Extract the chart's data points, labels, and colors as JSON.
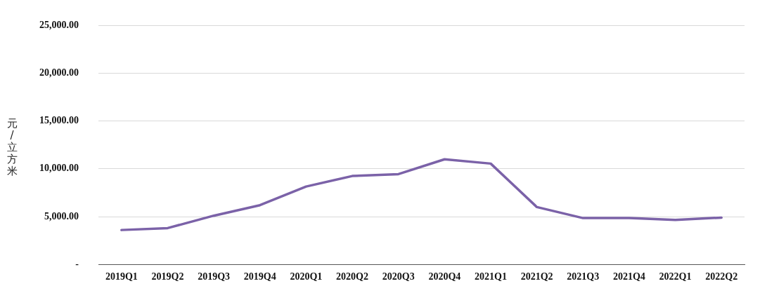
{
  "chart_data": {
    "type": "line",
    "ylabel": "元/立方米",
    "categories": [
      "2019Q1",
      "2019Q2",
      "2019Q3",
      "2019Q4",
      "2020Q1",
      "2020Q2",
      "2020Q3",
      "2020Q4",
      "2021Q1",
      "2021Q2",
      "2021Q3",
      "2021Q4",
      "2022Q1",
      "2022Q2"
    ],
    "series": [
      {
        "color": "#7b62a8",
        "values": [
          3600,
          3800,
          5100,
          6200,
          8150,
          9250,
          9450,
          11000,
          10550,
          6000,
          4850,
          4850,
          4650,
          4900
        ]
      }
    ],
    "ylim": [
      0,
      25000
    ],
    "yticks": [
      {
        "value": 0,
        "label": "-"
      },
      {
        "value": 5000,
        "label": "5,000.00"
      },
      {
        "value": 10000,
        "label": "10,000.00"
      },
      {
        "value": 15000,
        "label": "15,000.00"
      },
      {
        "value": 20000,
        "label": "20,000.00"
      },
      {
        "value": 25000,
        "label": "25,000.00"
      }
    ],
    "grid": "y",
    "marker": "none",
    "line_style": "solid",
    "legend": false
  }
}
